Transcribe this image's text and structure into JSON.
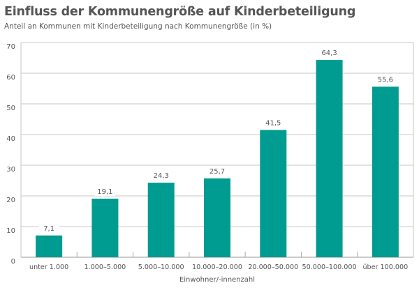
{
  "chart_data": {
    "type": "bar",
    "title": "Einfluss der Kommunengröße auf Kinderbeteiligung",
    "subtitle": "Anteil an Kommunen mit Kinderbeteiligung nach Kommunengröße (in %)",
    "xlabel": "Einwohner/-innenzahl",
    "ylabel": "",
    "categories": [
      "unter 1.000",
      "1.000–5.000",
      "5.000–10.000",
      "10.000–20.000",
      "20.000–50.000",
      "50.000–100.000",
      "über 100.000"
    ],
    "values": [
      7.1,
      19.1,
      24.3,
      25.7,
      41.5,
      64.3,
      55.6
    ],
    "value_labels": [
      "7,1",
      "19,1",
      "24,3",
      "25,7",
      "41,5",
      "64,3",
      "55,6"
    ],
    "ylim": [
      0,
      70
    ],
    "yticks": [
      0,
      10,
      20,
      30,
      40,
      50,
      60,
      70
    ],
    "grid": true,
    "legend": "none",
    "colors": {
      "bar": "#009b91",
      "grid": "#d2d2d2",
      "text": "#555555"
    }
  }
}
